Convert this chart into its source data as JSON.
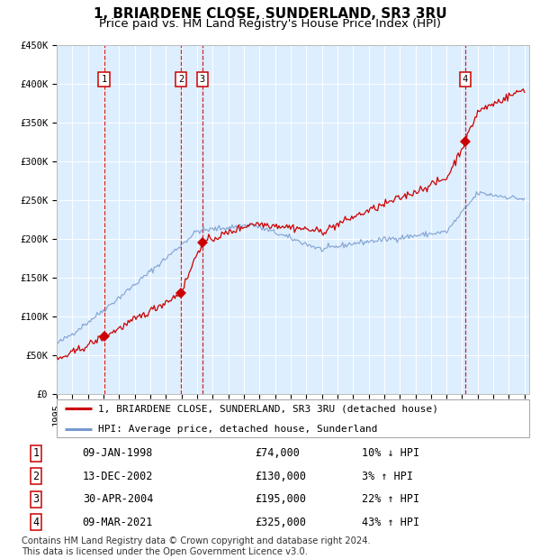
{
  "title": "1, BRIARDENE CLOSE, SUNDERLAND, SR3 3RU",
  "subtitle": "Price paid vs. HM Land Registry's House Price Index (HPI)",
  "ylim": [
    0,
    450000
  ],
  "yticks": [
    0,
    50000,
    100000,
    150000,
    200000,
    250000,
    300000,
    350000,
    400000,
    450000
  ],
  "ytick_labels": [
    "£0",
    "£50K",
    "£100K",
    "£150K",
    "£200K",
    "£250K",
    "£300K",
    "£350K",
    "£400K",
    "£450K"
  ],
  "bg_color": "#ddeeff",
  "grid_color": "#ffffff",
  "red_line_color": "#cc0000",
  "blue_line_color": "#7799cc",
  "vline_color": "#cc0000",
  "sale_dates": [
    1998.03,
    2002.96,
    2004.33,
    2021.19
  ],
  "sale_prices": [
    74000,
    130000,
    195000,
    325000
  ],
  "sale_labels": [
    "1",
    "2",
    "3",
    "4"
  ],
  "legend_line1": "1, BRIARDENE CLOSE, SUNDERLAND, SR3 3RU (detached house)",
  "legend_line2": "HPI: Average price, detached house, Sunderland",
  "table_data": [
    {
      "num": "1",
      "date": "09-JAN-1998",
      "price": "£74,000",
      "hpi": "10% ↓ HPI"
    },
    {
      "num": "2",
      "date": "13-DEC-2002",
      "price": "£130,000",
      "hpi": "3% ↑ HPI"
    },
    {
      "num": "3",
      "date": "30-APR-2004",
      "price": "£195,000",
      "hpi": "22% ↑ HPI"
    },
    {
      "num": "4",
      "date": "09-MAR-2021",
      "price": "£325,000",
      "hpi": "43% ↑ HPI"
    }
  ],
  "footnote": "Contains HM Land Registry data © Crown copyright and database right 2024.\nThis data is licensed under the Open Government Licence v3.0."
}
